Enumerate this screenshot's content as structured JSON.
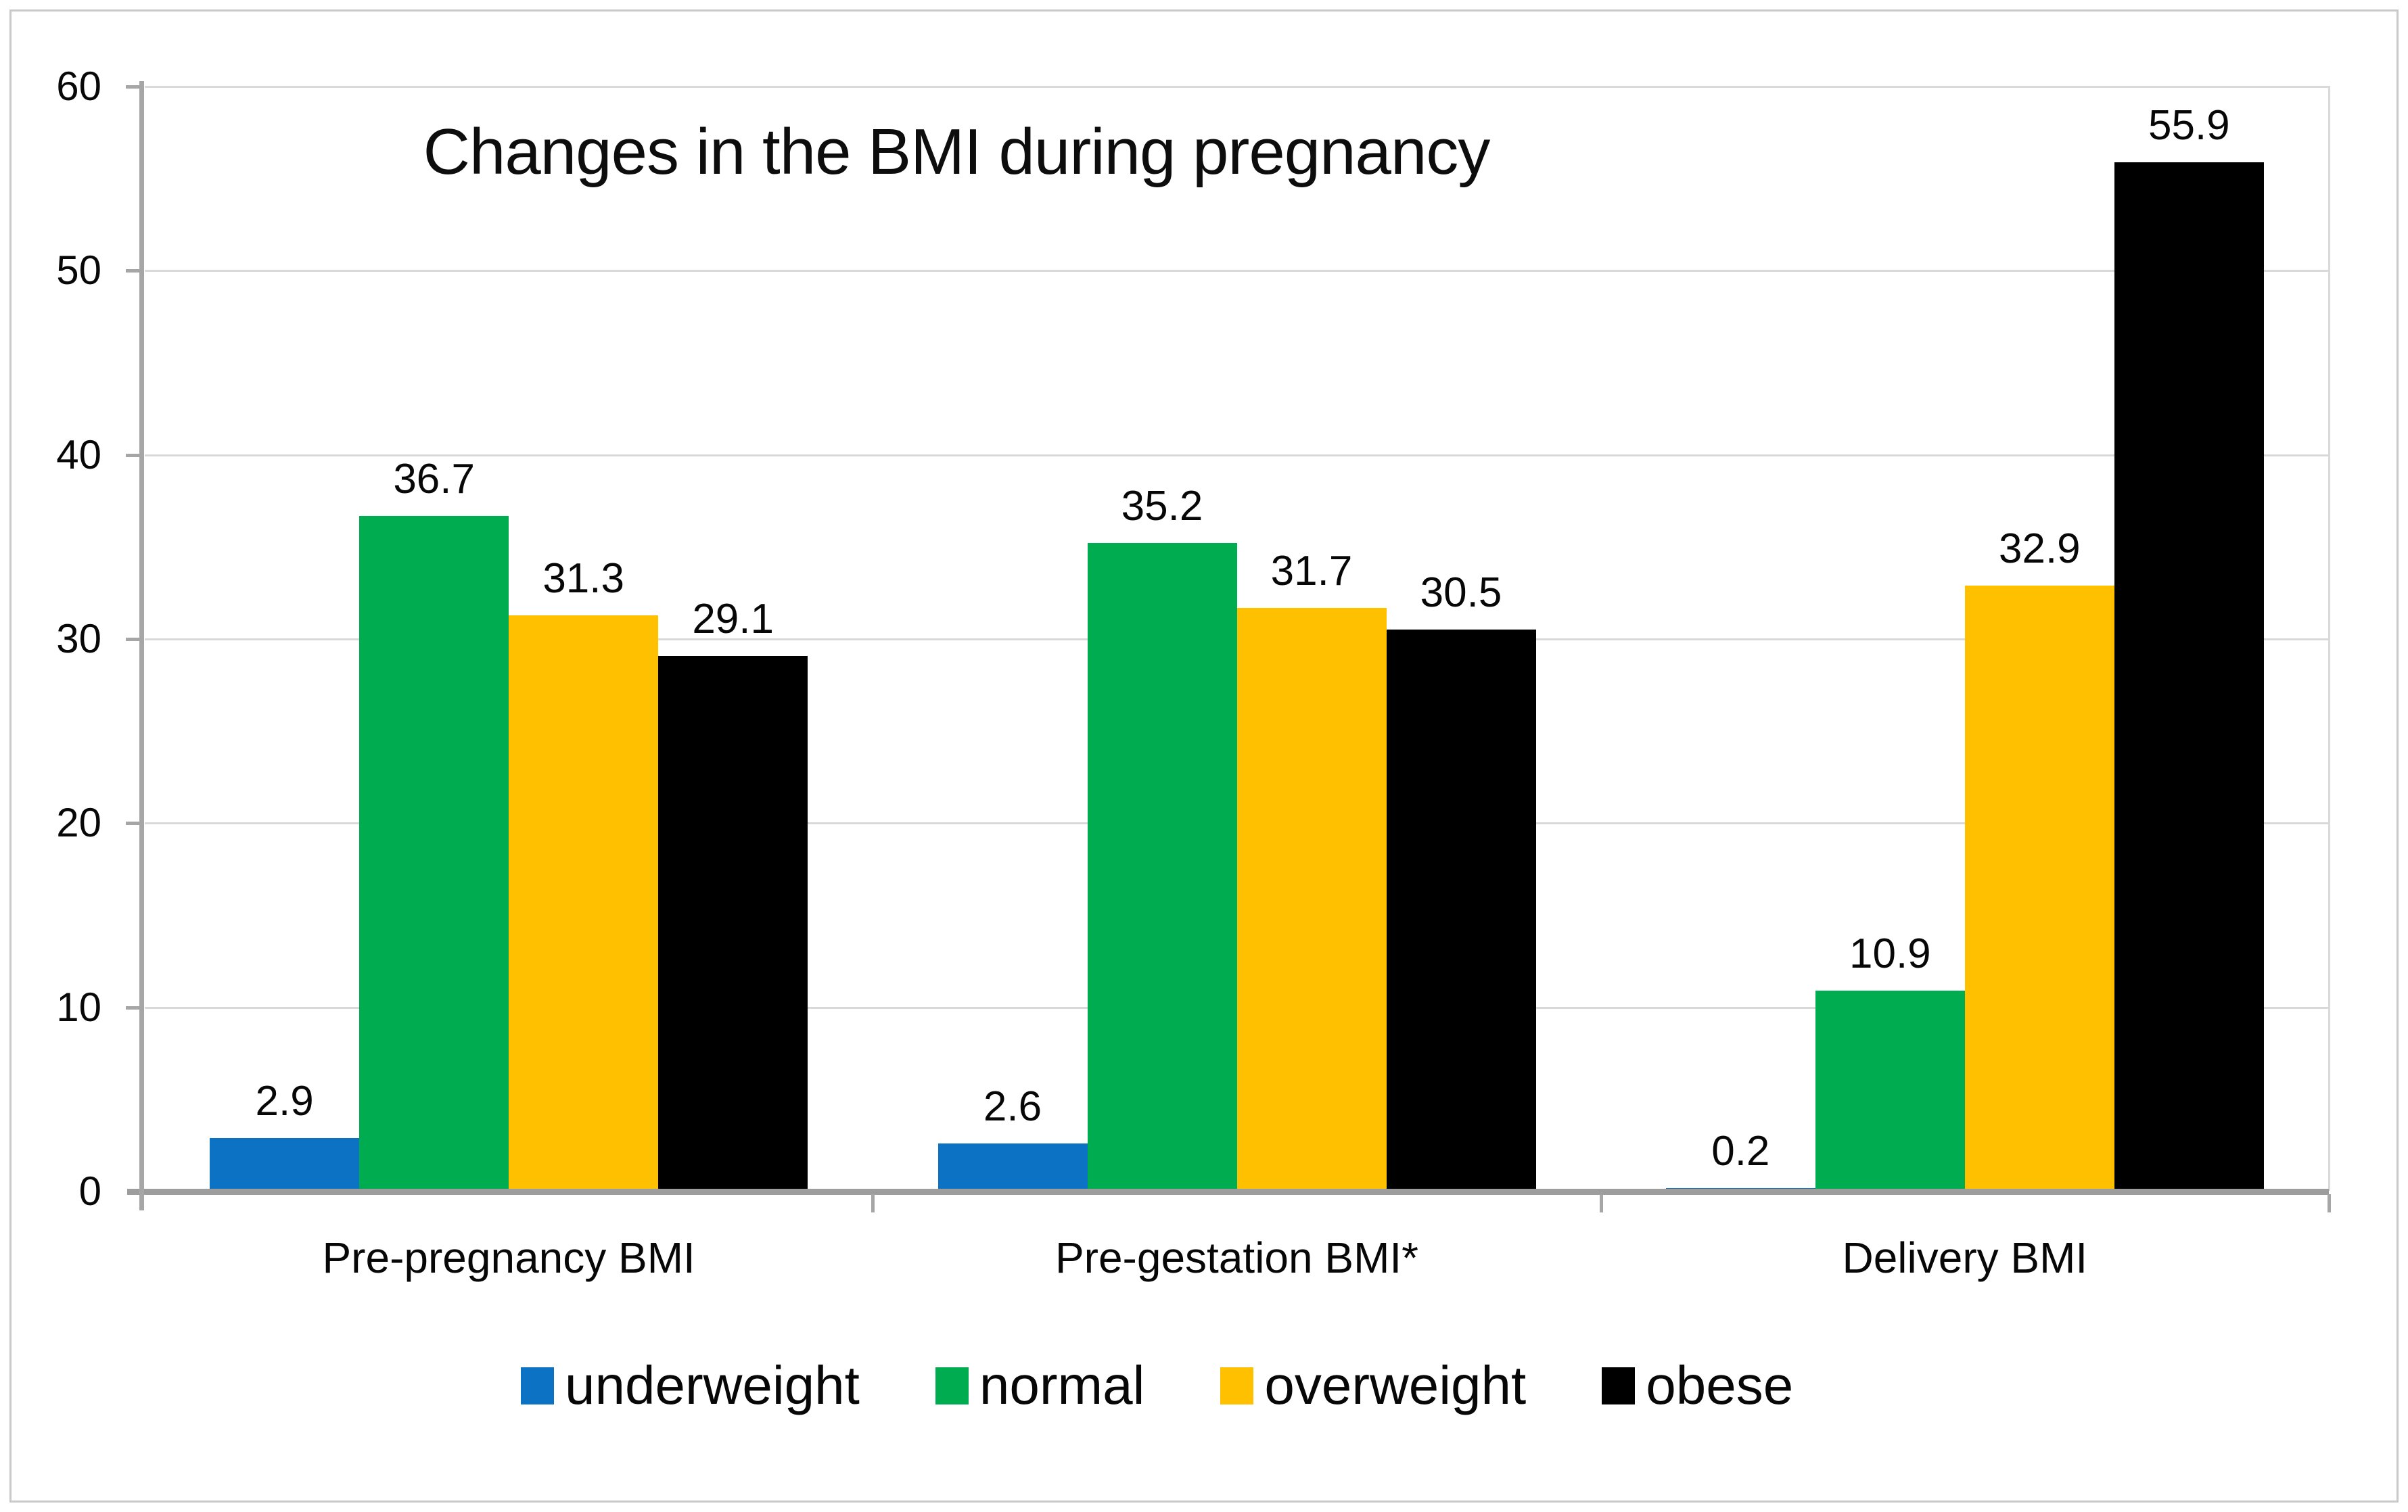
{
  "title": "Changes in the BMI during pregnancy",
  "chart_data": {
    "type": "bar",
    "title": "Changes in the BMI during pregnancy",
    "categories": [
      "Pre-pregnancy BMI",
      "Pre-gestation BMI*",
      "Delivery BMI"
    ],
    "series": [
      {
        "name": "underweight",
        "color": "#0c72c4",
        "values": [
          2.9,
          2.6,
          0.2
        ]
      },
      {
        "name": "normal",
        "color": "#00ac50",
        "values": [
          36.7,
          35.2,
          10.9
        ]
      },
      {
        "name": "overweight",
        "color": "#ffc000",
        "values": [
          31.3,
          31.7,
          32.9
        ]
      },
      {
        "name": "obese",
        "color": "#000000",
        "values": [
          29.1,
          30.5,
          55.9
        ]
      }
    ],
    "y_ticks": [
      0,
      10,
      20,
      30,
      40,
      50,
      60
    ],
    "ylim": [
      0,
      60
    ],
    "xlabel": "",
    "ylabel": "",
    "grid": true,
    "data_labels": true,
    "data_label_format": "one-decimal",
    "legend_position": "bottom",
    "colors": {
      "gridline": "#d9d9d9",
      "axis": "#a6a6a6",
      "baseline": "#9d9d9d",
      "figure_border": "#c9c9c9",
      "text": "#070707",
      "background": "#ffffff"
    }
  }
}
